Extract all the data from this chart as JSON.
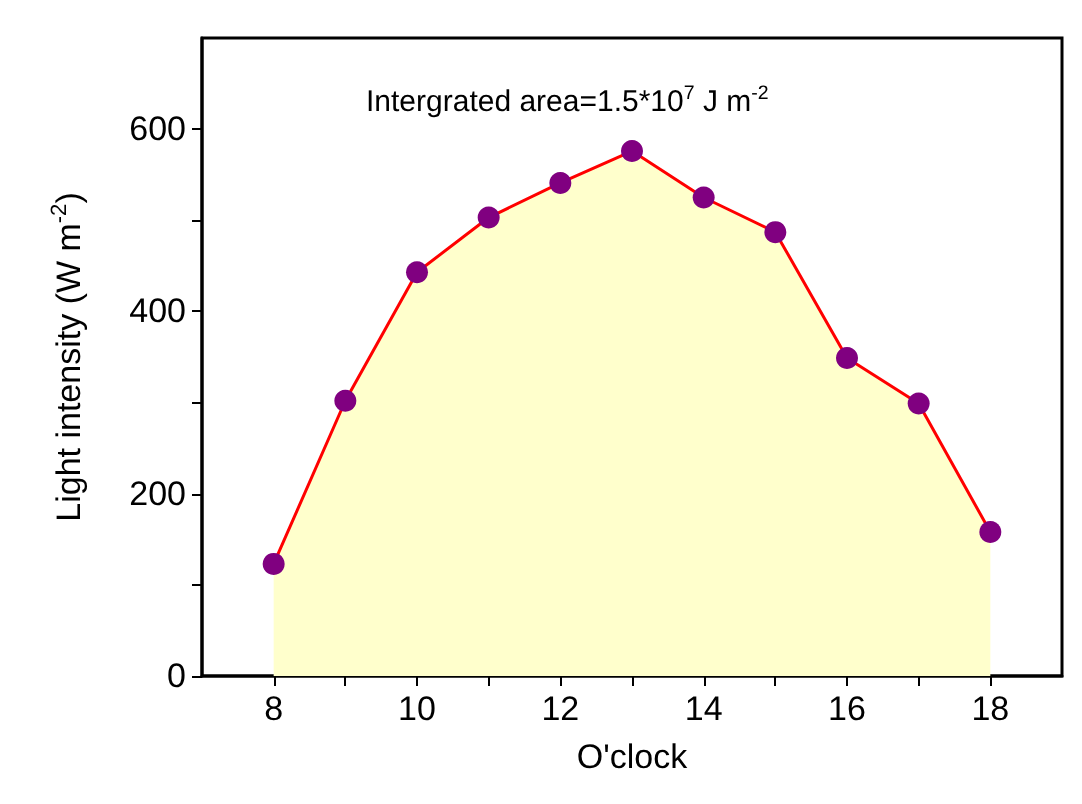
{
  "chart_data": {
    "type": "area",
    "xlabel": "O'clock",
    "ylabel": "Light intensity (W m$^{-2}$)",
    "annotations": [
      "Intergrated area=1.5*10$^{7}$ J m$^{-2}$"
    ],
    "x": [
      8,
      9,
      10,
      11,
      12,
      13,
      14,
      15,
      16,
      17,
      18
    ],
    "series": [
      {
        "color": "#ff0000",
        "colors": [
          "#800080",
          "#800080",
          "#800080",
          "#800080",
          "#800080",
          "#800080",
          "#800080",
          "#800080",
          "#800080",
          "#800080",
          "#800080"
        ],
        "values": [
          123,
          302,
          443,
          503,
          541,
          576,
          525,
          487,
          349,
          299,
          158
        ]
      }
    ],
    "xlim": [
      7,
      19
    ],
    "xticks": [
      8,
      {
        "value": 9,
        "label": null
      },
      10,
      {
        "value": 11,
        "label": null
      },
      12,
      {
        "value": 13,
        "label": null
      },
      14,
      {
        "value": 15,
        "label": null
      },
      16,
      {
        "value": 17,
        "label": null
      },
      18
    ],
    "ylim": [
      0,
      700
    ],
    "yticks": [
      0,
      {
        "value": 100,
        "label": null
      },
      200,
      {
        "value": 300,
        "label": null
      },
      400,
      {
        "value": 500,
        "label": null
      },
      600
    ],
    "grid": false,
    "marker": "circle",
    "line_style": "solid"
  }
}
